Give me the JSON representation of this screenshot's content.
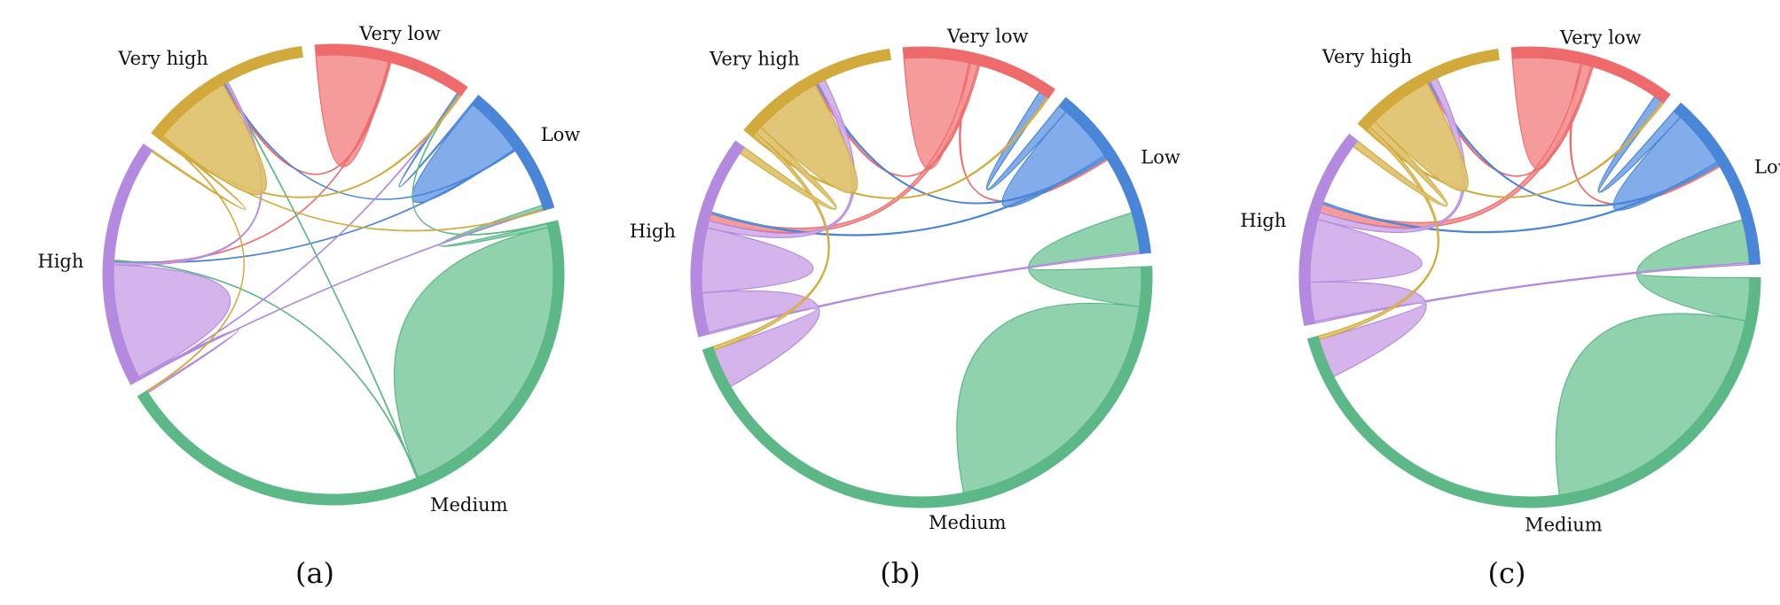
{
  "groups": [
    {
      "name": "Very low",
      "color": "#ef6b6b",
      "fill": "#f59393"
    },
    {
      "name": "Low",
      "color": "#4a86d8",
      "fill": "#77a5e8"
    },
    {
      "name": "Medium",
      "color": "#5cb887",
      "fill": "#87cda7"
    },
    {
      "name": "High",
      "color": "#b38adf",
      "fill": "#d0aee9"
    },
    {
      "name": "Very high",
      "color": "#d2aa3c",
      "fill": "#dfc16b"
    }
  ],
  "panels": [
    {
      "caption": "(a)",
      "flows": [
        [
          48,
          0,
          0,
          0.5,
          1
        ],
        [
          1,
          40,
          0,
          0.5,
          0.5
        ],
        [
          0.5,
          2.5,
          200,
          0.5,
          0.5
        ],
        [
          0.5,
          0.5,
          1,
          76,
          1.5
        ],
        [
          1,
          0.5,
          0.5,
          1,
          52
        ]
      ]
    },
    {
      "caption": "(b)",
      "flows": [
        [
          36,
          1,
          0,
          4,
          1
        ],
        [
          5,
          32,
          0,
          1,
          1
        ],
        [
          0,
          22,
          150,
          0,
          0
        ],
        [
          0,
          1,
          22,
          36,
          4
        ],
        [
          1,
          0,
          2,
          4,
          38
        ]
      ]
    },
    {
      "caption": "(c)",
      "flows": [
        [
          38,
          1,
          0,
          5,
          1
        ],
        [
          5,
          32,
          0,
          1,
          1
        ],
        [
          0,
          24,
          150,
          0,
          0
        ],
        [
          0,
          1,
          22,
          35,
          4
        ],
        [
          1,
          0,
          2,
          4,
          36
        ]
      ]
    }
  ]
}
